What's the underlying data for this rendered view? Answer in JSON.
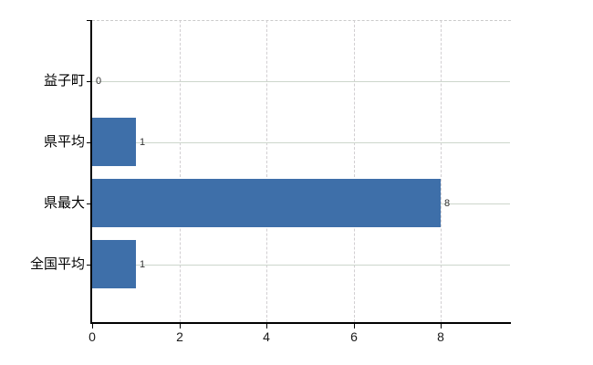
{
  "chart_data": {
    "type": "bar",
    "orientation": "horizontal",
    "title": "",
    "xlabel": "",
    "ylabel": "",
    "categories": [
      "益子町",
      "県平均",
      "県最大",
      "全国平均"
    ],
    "values": [
      0,
      1,
      8,
      1
    ],
    "value_labels": [
      "0",
      "1",
      "8",
      "1"
    ],
    "x_ticks": [
      0,
      2,
      4,
      6,
      8
    ],
    "x_tick_labels": [
      "0",
      "2",
      "4",
      "6",
      "8"
    ],
    "xlim": [
      0,
      9.61
    ],
    "grid": true,
    "legend": null,
    "colors": {
      "bar": "#3e6fa9",
      "axis": "#000000",
      "horizontal_grid": "#cdd6cc",
      "vertical_grid": "#d1ced1",
      "top_border": "#cbcbcb",
      "value_text": "#333333",
      "tick_text": "#1a1a1a",
      "background": "#ffffff"
    }
  }
}
